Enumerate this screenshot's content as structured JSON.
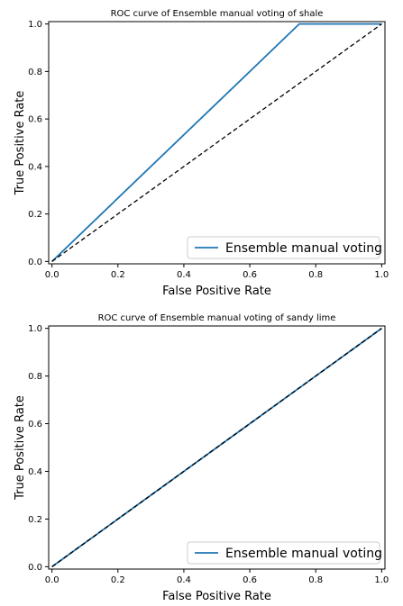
{
  "chart_data": [
    {
      "type": "line",
      "title": "ROC curve of Ensemble manual voting of  shale",
      "xlabel": "False Positive Rate",
      "ylabel": "True Positive Rate",
      "xlim": [
        0,
        1
      ],
      "ylim": [
        0,
        1
      ],
      "xticks": [
        "0.0",
        "0.2",
        "0.4",
        "0.6",
        "0.8",
        "1.0"
      ],
      "yticks": [
        "0.0",
        "0.2",
        "0.4",
        "0.6",
        "0.8",
        "1.0"
      ],
      "grid": false,
      "legend_position": "lower-right",
      "series": [
        {
          "name": "Ensemble manual voting",
          "color": "#1f77b4",
          "style": "solid",
          "x": [
            0,
            0.75,
            1.0
          ],
          "y": [
            0,
            1.0,
            1.0
          ]
        },
        {
          "color": "#000000",
          "style": "dashed",
          "x": [
            0,
            1
          ],
          "y": [
            0,
            1
          ]
        }
      ]
    },
    {
      "type": "line",
      "title": "ROC curve of Ensemble manual voting of  sandy lime",
      "xlabel": "False Positive Rate",
      "ylabel": "True Positive Rate",
      "xlim": [
        0,
        1
      ],
      "ylim": [
        0,
        1
      ],
      "xticks": [
        "0.0",
        "0.2",
        "0.4",
        "0.6",
        "0.8",
        "1.0"
      ],
      "yticks": [
        "0.0",
        "0.2",
        "0.4",
        "0.6",
        "0.8",
        "1.0"
      ],
      "grid": false,
      "legend_position": "lower-right",
      "series": [
        {
          "name": "Ensemble manual voting",
          "color": "#1f77b4",
          "style": "solid",
          "x": [
            0,
            1
          ],
          "y": [
            0,
            1
          ]
        },
        {
          "color": "#000000",
          "style": "dashed",
          "x": [
            0,
            1
          ],
          "y": [
            0,
            1
          ]
        }
      ]
    }
  ]
}
